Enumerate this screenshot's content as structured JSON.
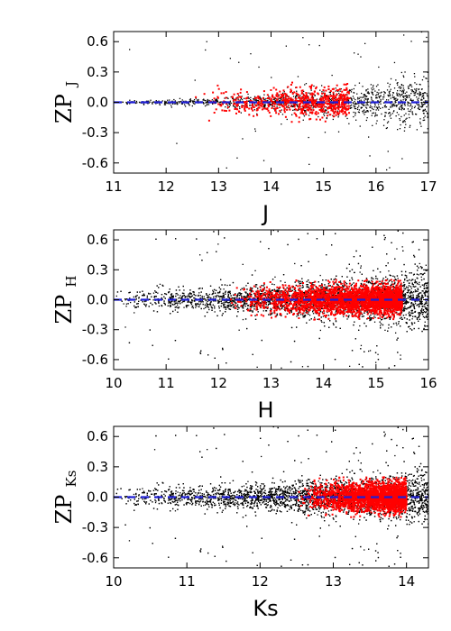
{
  "chart_data": [
    {
      "type": "scatter",
      "xlabel": "J",
      "ylabel": "ZP",
      "ylabel_sub": "J",
      "xlim": [
        11,
        17
      ],
      "ylim": [
        -0.7,
        0.7
      ],
      "xticks": [
        "11",
        "12",
        "13",
        "14",
        "15",
        "16",
        "17"
      ],
      "yticks": [
        "0.6",
        "0.3",
        "0.0",
        "-0.3",
        "-0.6"
      ],
      "reference_line_y": 0.0,
      "colors": {
        "all_stars": "#000000",
        "selected": "#ff0000",
        "reference_line": "#1f1fd6"
      },
      "series": [
        {
          "color": "black",
          "x_range": [
            11.0,
            17.0
          ],
          "spread_sigma_at_bright": 0.02,
          "spread_sigma_at_faint": 0.25
        },
        {
          "color": "red",
          "x_range": [
            12.5,
            15.5
          ],
          "y_range": [
            -0.2,
            0.2
          ]
        }
      ]
    },
    {
      "type": "scatter",
      "xlabel": "H",
      "ylabel": "ZP",
      "ylabel_sub": "H",
      "xlim": [
        10,
        16
      ],
      "ylim": [
        -0.7,
        0.7
      ],
      "xticks": [
        "10",
        "11",
        "12",
        "13",
        "14",
        "15",
        "16"
      ],
      "yticks": [
        "0.6",
        "0.3",
        "0.0",
        "-0.3",
        "-0.6"
      ],
      "reference_line_y": 0.0,
      "colors": {
        "all_stars": "#000000",
        "selected": "#ff0000",
        "reference_line": "#1f1fd6"
      },
      "series": [
        {
          "color": "black",
          "x_range": [
            10.0,
            16.0
          ],
          "spread_sigma_at_bright": 0.1,
          "spread_sigma_at_faint": 0.3
        },
        {
          "color": "red",
          "x_range": [
            12.2,
            15.5
          ],
          "y_range": [
            -0.2,
            0.2
          ]
        }
      ]
    },
    {
      "type": "scatter",
      "xlabel": "Ks",
      "ylabel": "ZP",
      "ylabel_sub": "Ks",
      "xlim": [
        10,
        14.3
      ],
      "ylim": [
        -0.7,
        0.7
      ],
      "xticks": [
        "10",
        "11",
        "12",
        "13",
        "14"
      ],
      "yticks": [
        "0.6",
        "0.3",
        "0.0",
        "-0.3",
        "-0.6"
      ],
      "reference_line_y": 0.0,
      "colors": {
        "all_stars": "#000000",
        "selected": "#ff0000",
        "reference_line": "#1f1fd6"
      },
      "series": [
        {
          "color": "black",
          "x_range": [
            10.0,
            14.3
          ],
          "spread_sigma_at_bright": 0.1,
          "spread_sigma_at_faint": 0.25
        },
        {
          "color": "red",
          "x_range": [
            12.5,
            14.0
          ],
          "y_range": [
            -0.2,
            0.2
          ]
        }
      ]
    }
  ]
}
